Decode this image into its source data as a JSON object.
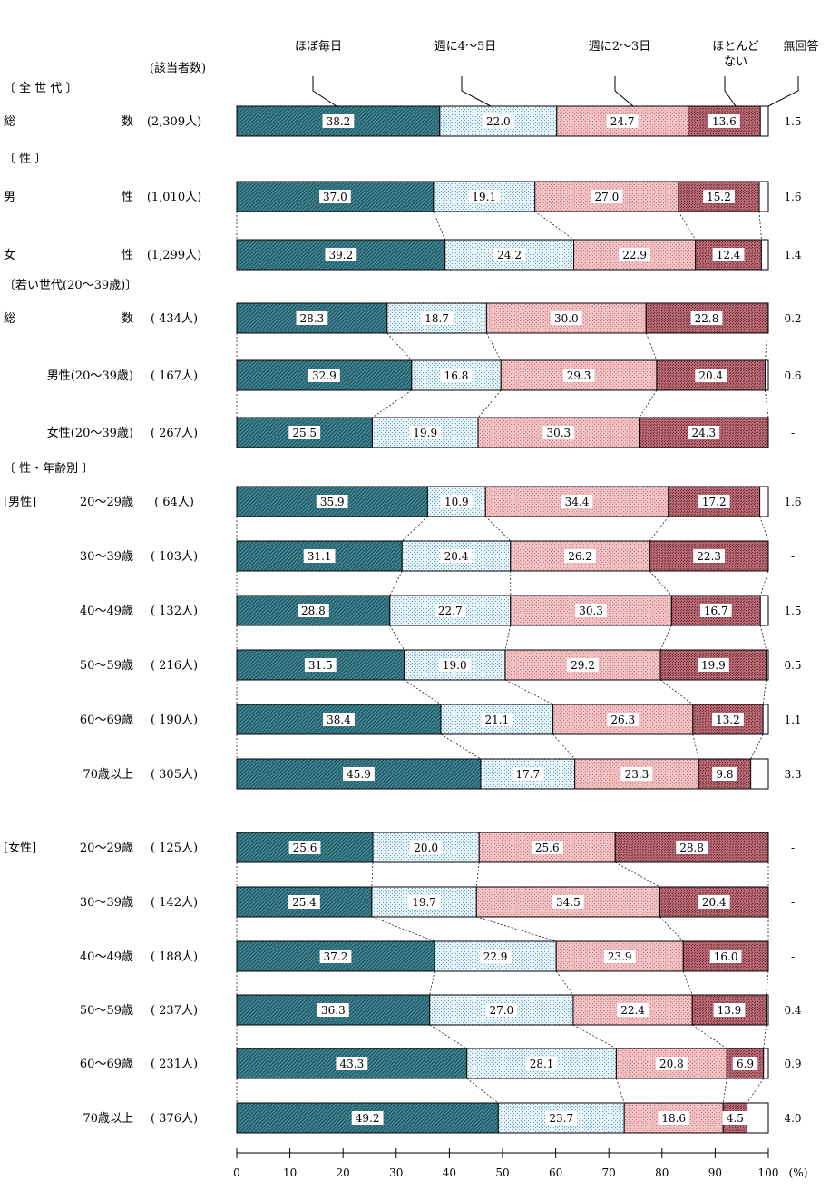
{
  "chart_data": {
    "type": "bar",
    "stacked": true,
    "orientation": "horizontal",
    "series": [
      "ほぼ毎日",
      "週に4～5日",
      "週に2～3日",
      "ほとんどない",
      "無回答"
    ],
    "legend_labels": [
      "ほぼ毎日",
      "週に4～5日",
      "週に2～3日",
      "ほとんど",
      "ない",
      "無回答"
    ],
    "count_header": "(該当者数)",
    "series_colors": [
      "#3f8592",
      "#d9eef5",
      "#eeb8ba",
      "#b56772",
      "#ffffff"
    ],
    "xlim": [
      0,
      100
    ],
    "x_ticks": [
      "0",
      "10",
      "20",
      "30",
      "40",
      "50",
      "60",
      "70",
      "80",
      "90",
      "100"
    ],
    "x_unit": "(%)",
    "headings": [
      {
        "text": "〔 全 世 代 〕"
      },
      {
        "text": "〔 性 〕"
      },
      {
        "text": "〔若い世代(20～39歳)〕"
      },
      {
        "text": "〔 性・年齢別 〕"
      }
    ],
    "rows": [
      {
        "group": "",
        "label": "総 数",
        "count": "(2,309人)",
        "values": [
          38.2,
          22.0,
          24.7,
          13.6,
          1.5
        ],
        "labels": [
          "38.2",
          "22.0",
          "24.7",
          "13.6",
          "1.5"
        ]
      },
      {
        "group": "",
        "label": "男 性",
        "count": "(1,010人)",
        "values": [
          37.0,
          19.1,
          27.0,
          15.2,
          1.6
        ],
        "labels": [
          "37.0",
          "19.1",
          "27.0",
          "15.2",
          "1.6"
        ]
      },
      {
        "group": "",
        "label": "女 性",
        "count": "(1,299人)",
        "values": [
          39.2,
          24.2,
          22.9,
          12.4,
          1.4
        ],
        "labels": [
          "39.2",
          "24.2",
          "22.9",
          "12.4",
          "1.4"
        ]
      },
      {
        "group": "",
        "label": "総 数",
        "count": "( 434人)",
        "values": [
          28.3,
          18.7,
          30.0,
          22.8,
          0.2
        ],
        "labels": [
          "28.3",
          "18.7",
          "30.0",
          "22.8",
          "0.2"
        ]
      },
      {
        "group": "",
        "label": "男性(20～39歳)",
        "count": "( 167人)",
        "values": [
          32.9,
          16.8,
          29.3,
          20.4,
          0.6
        ],
        "labels": [
          "32.9",
          "16.8",
          "29.3",
          "20.4",
          "0.6"
        ]
      },
      {
        "group": "",
        "label": "女性(20～39歳)",
        "count": "( 267人)",
        "values": [
          25.5,
          19.9,
          30.3,
          24.3,
          0
        ],
        "labels": [
          "25.5",
          "19.9",
          "30.3",
          "24.3",
          "-"
        ]
      },
      {
        "group": "[男性]",
        "label": "20～29歳",
        "count": "( 64人)",
        "values": [
          35.9,
          10.9,
          34.4,
          17.2,
          1.6
        ],
        "labels": [
          "35.9",
          "10.9",
          "34.4",
          "17.2",
          "1.6"
        ]
      },
      {
        "group": "",
        "label": "30～39歳",
        "count": "( 103人)",
        "values": [
          31.1,
          20.4,
          26.2,
          22.3,
          0
        ],
        "labels": [
          "31.1",
          "20.4",
          "26.2",
          "22.3",
          "-"
        ]
      },
      {
        "group": "",
        "label": "40～49歳",
        "count": "( 132人)",
        "values": [
          28.8,
          22.7,
          30.3,
          16.7,
          1.5
        ],
        "labels": [
          "28.8",
          "22.7",
          "30.3",
          "16.7",
          "1.5"
        ]
      },
      {
        "group": "",
        "label": "50～59歳",
        "count": "( 216人)",
        "values": [
          31.5,
          19.0,
          29.2,
          19.9,
          0.5
        ],
        "labels": [
          "31.5",
          "19.0",
          "29.2",
          "19.9",
          "0.5"
        ]
      },
      {
        "group": "",
        "label": "60～69歳",
        "count": "( 190人)",
        "values": [
          38.4,
          21.1,
          26.3,
          13.2,
          1.1
        ],
        "labels": [
          "38.4",
          "21.1",
          "26.3",
          "13.2",
          "1.1"
        ]
      },
      {
        "group": "",
        "label": "70歳以上",
        "count": "( 305人)",
        "values": [
          45.9,
          17.7,
          23.3,
          9.8,
          3.3
        ],
        "labels": [
          "45.9",
          "17.7",
          "23.3",
          "9.8",
          "3.3"
        ]
      },
      {
        "group": "[女性]",
        "label": "20～29歳",
        "count": "( 125人)",
        "values": [
          25.6,
          20.0,
          25.6,
          28.8,
          0
        ],
        "labels": [
          "25.6",
          "20.0",
          "25.6",
          "28.8",
          "-"
        ]
      },
      {
        "group": "",
        "label": "30～39歳",
        "count": "( 142人)",
        "values": [
          25.4,
          19.7,
          34.5,
          20.4,
          0
        ],
        "labels": [
          "25.4",
          "19.7",
          "34.5",
          "20.4",
          "-"
        ]
      },
      {
        "group": "",
        "label": "40～49歳",
        "count": "( 188人)",
        "values": [
          37.2,
          22.9,
          23.9,
          16.0,
          0
        ],
        "labels": [
          "37.2",
          "22.9",
          "23.9",
          "16.0",
          "-"
        ]
      },
      {
        "group": "",
        "label": "50～59歳",
        "count": "( 237人)",
        "values": [
          36.3,
          27.0,
          22.4,
          13.9,
          0.4
        ],
        "labels": [
          "36.3",
          "27.0",
          "22.4",
          "13.9",
          "0.4"
        ]
      },
      {
        "group": "",
        "label": "60～69歳",
        "count": "( 231人)",
        "values": [
          43.3,
          28.1,
          20.8,
          6.9,
          0.9
        ],
        "labels": [
          "43.3",
          "28.1",
          "20.8",
          "6.9",
          "0.9"
        ]
      },
      {
        "group": "",
        "label": "70歳以上",
        "count": "( 376人)",
        "values": [
          49.2,
          23.7,
          18.6,
          4.5,
          4.0
        ],
        "labels": [
          "49.2",
          "23.7",
          "18.6",
          "4.5",
          "4.0"
        ]
      }
    ]
  }
}
